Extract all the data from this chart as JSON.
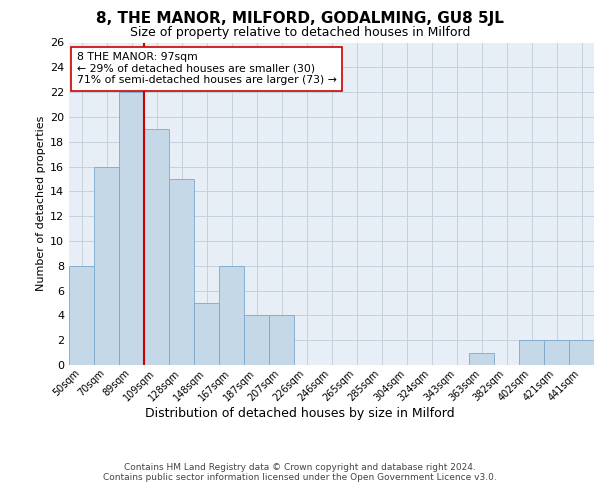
{
  "title": "8, THE MANOR, MILFORD, GODALMING, GU8 5JL",
  "subtitle": "Size of property relative to detached houses in Milford",
  "xlabel": "Distribution of detached houses by size in Milford",
  "ylabel": "Number of detached properties",
  "bins": [
    "50sqm",
    "70sqm",
    "89sqm",
    "109sqm",
    "128sqm",
    "148sqm",
    "167sqm",
    "187sqm",
    "207sqm",
    "226sqm",
    "246sqm",
    "265sqm",
    "285sqm",
    "304sqm",
    "324sqm",
    "343sqm",
    "363sqm",
    "382sqm",
    "402sqm",
    "421sqm",
    "441sqm"
  ],
  "values": [
    8,
    16,
    22,
    19,
    15,
    5,
    8,
    4,
    4,
    0,
    0,
    0,
    0,
    0,
    0,
    0,
    1,
    0,
    2,
    2,
    2
  ],
  "bar_color": "#c5d8e8",
  "bar_edgecolor": "#7aa8cc",
  "vline_color": "#cc0000",
  "annotation_text": "8 THE MANOR: 97sqm\n← 29% of detached houses are smaller (30)\n71% of semi-detached houses are larger (73) →",
  "annotation_box_edgecolor": "#cc0000",
  "ylim": [
    0,
    26
  ],
  "yticks": [
    0,
    2,
    4,
    6,
    8,
    10,
    12,
    14,
    16,
    18,
    20,
    22,
    24,
    26
  ],
  "footer": "Contains HM Land Registry data © Crown copyright and database right 2024.\nContains public sector information licensed under the Open Government Licence v3.0.",
  "background_color": "#e8eef5",
  "plot_background": "#ffffff",
  "grid_color": "#c0ccda",
  "title_fontsize": 11,
  "subtitle_fontsize": 9,
  "ylabel_fontsize": 8,
  "xtick_fontsize": 7,
  "ytick_fontsize": 8,
  "footer_fontsize": 6.5,
  "xlabel_fontsize": 9
}
